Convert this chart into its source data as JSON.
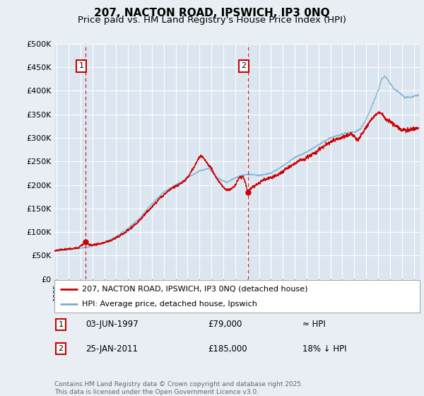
{
  "title_line1": "207, NACTON ROAD, IPSWICH, IP3 0NQ",
  "title_line2": "Price paid vs. HM Land Registry's House Price Index (HPI)",
  "ylim": [
    0,
    500000
  ],
  "yticks": [
    0,
    50000,
    100000,
    150000,
    200000,
    250000,
    300000,
    350000,
    400000,
    450000,
    500000
  ],
  "ytick_labels": [
    "£0",
    "£50K",
    "£100K",
    "£150K",
    "£200K",
    "£250K",
    "£300K",
    "£350K",
    "£400K",
    "£450K",
    "£500K"
  ],
  "xlim_start": 1994.8,
  "xlim_end": 2025.5,
  "sale1_year": 1997.42,
  "sale1_price": 79000,
  "sale1_label": "1",
  "sale1_date": "03-JUN-1997",
  "sale1_price_str": "£79,000",
  "sale1_hpi_str": "≈ HPI",
  "sale2_year": 2011.07,
  "sale2_price": 185000,
  "sale2_label": "2",
  "sale2_date": "25-JAN-2011",
  "sale2_price_str": "£185,000",
  "sale2_hpi_str": "18% ↓ HPI",
  "red_color": "#cc0000",
  "blue_color": "#7bafd4",
  "bg_color": "#e8eef4",
  "plot_bg_color": "#dce6f0",
  "grid_color": "#ffffff",
  "legend_label_red": "207, NACTON ROAD, IPSWICH, IP3 0NQ (detached house)",
  "legend_label_blue": "HPI: Average price, detached house, Ipswich",
  "footer": "Contains HM Land Registry data © Crown copyright and database right 2025.\nThis data is licensed under the Open Government Licence v3.0.",
  "title_fontsize": 11,
  "subtitle_fontsize": 9.5
}
